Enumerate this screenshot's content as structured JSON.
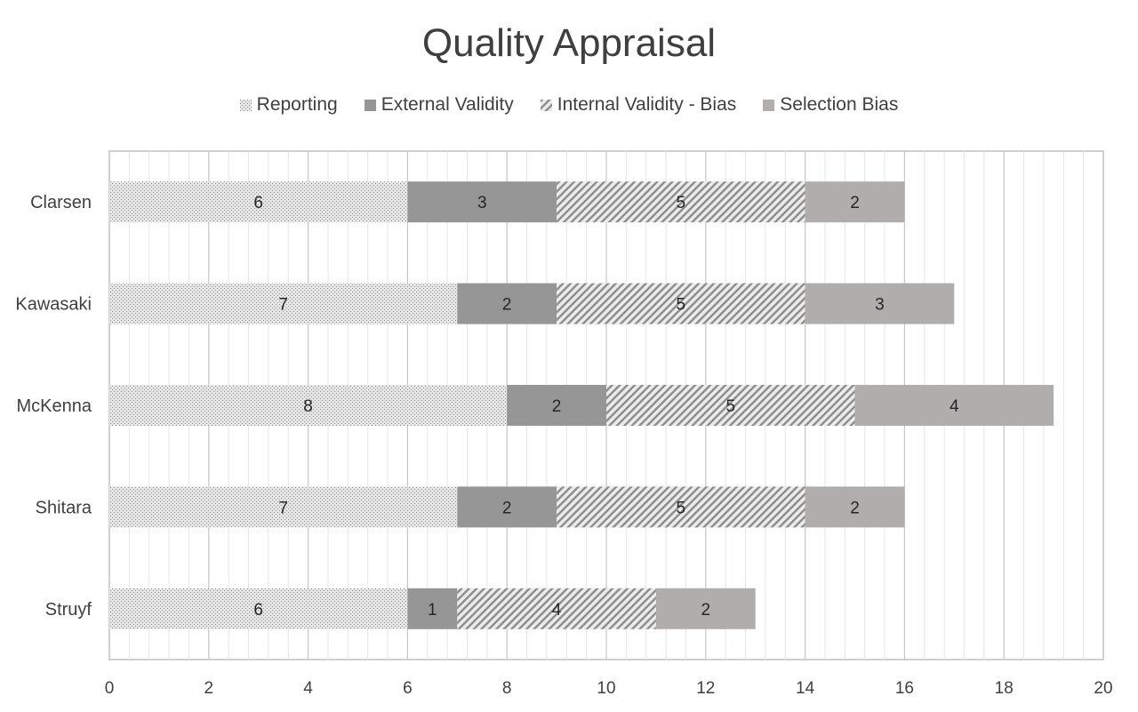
{
  "chart_data": {
    "type": "bar",
    "orientation": "horizontal",
    "stacked": true,
    "title": "Quality Appraisal",
    "categories": [
      "Clarsen",
      "Kawasaki",
      "McKenna",
      "Shitara",
      "Struyf"
    ],
    "series": [
      {
        "name": "Reporting",
        "values": [
          6,
          7,
          8,
          7,
          6
        ],
        "color": "#d0d0d0",
        "pattern": "dots"
      },
      {
        "name": "External Validity",
        "values": [
          3,
          2,
          2,
          2,
          1
        ],
        "color": "#969696",
        "pattern": "solid"
      },
      {
        "name": "Internal Validity - Bias",
        "values": [
          5,
          5,
          5,
          5,
          4
        ],
        "color": "#c8c8c8",
        "pattern": "diagonal"
      },
      {
        "name": "Selection Bias",
        "values": [
          2,
          3,
          4,
          2,
          2
        ],
        "color": "#b0adad",
        "pattern": "solid"
      }
    ],
    "xlim": [
      0,
      20
    ],
    "xticks": [
      "0",
      "2",
      "4",
      "6",
      "8",
      "10",
      "12",
      "14",
      "16",
      "18",
      "20"
    ],
    "grid": true,
    "legend_position": "top",
    "data_labels": true
  }
}
